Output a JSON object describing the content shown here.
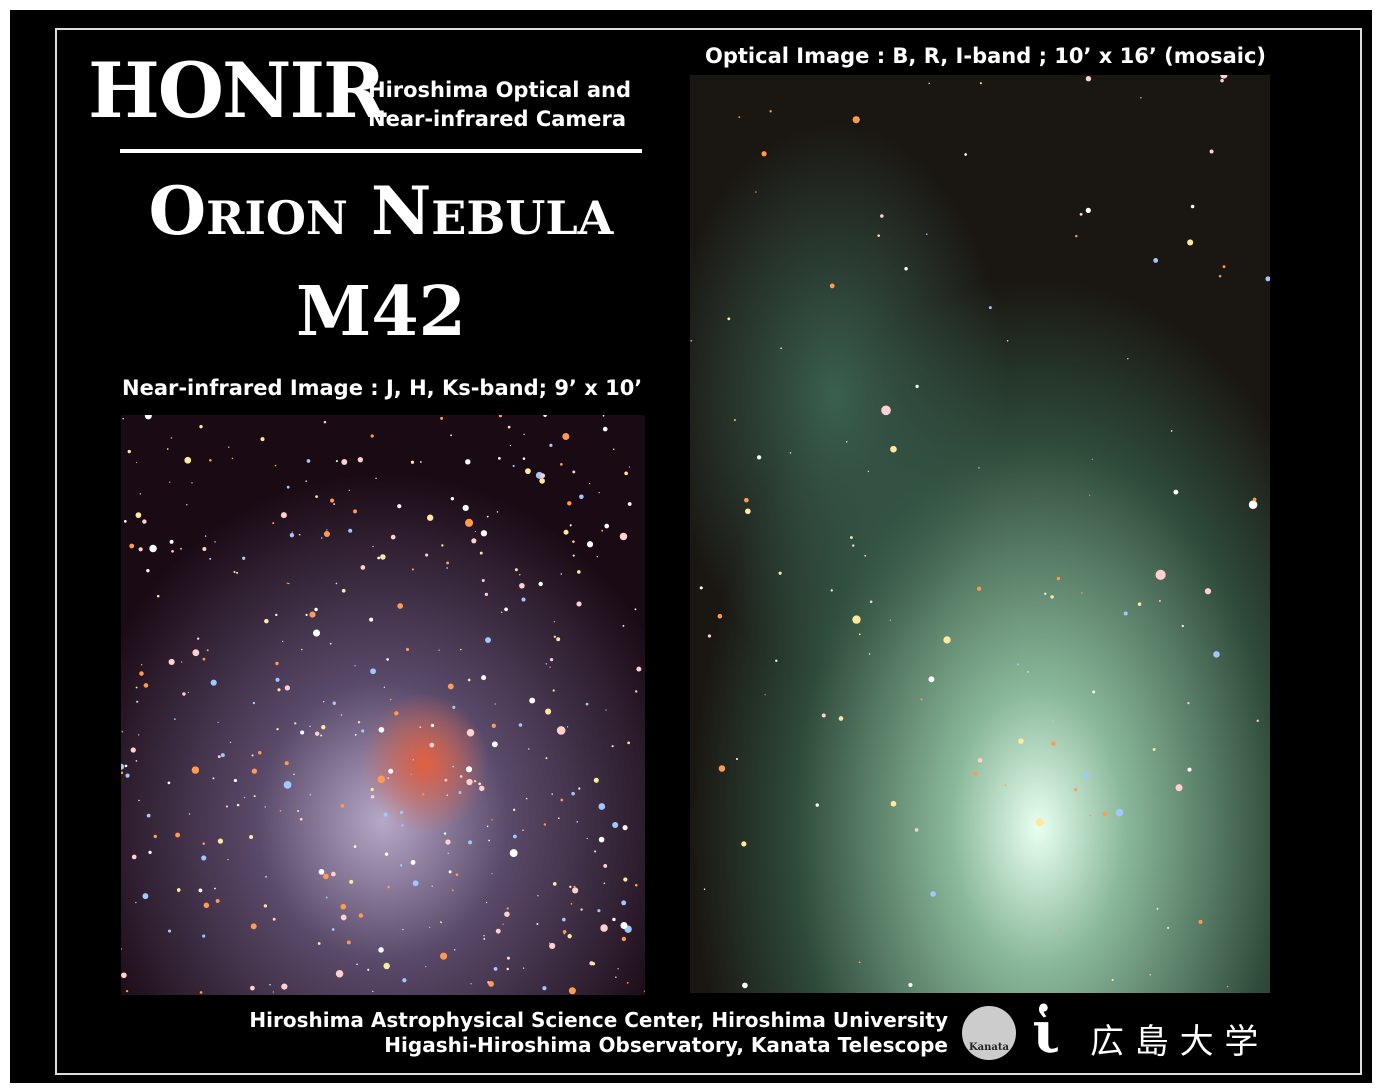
{
  "header": {
    "logo": "HONIR",
    "subtitle_lines": [
      "Hiroshima Optical and",
      "Near-infrared Camera"
    ]
  },
  "title": {
    "name": "Orion Nebula",
    "designation": "M42"
  },
  "images": {
    "near_infrared": {
      "caption": "Near-infrared Image : J, H, Ks-band; 9’ x 10’"
    },
    "optical": {
      "caption": "Optical Image : B, R, I-band ; 10’ x 16’ (mosaic)"
    }
  },
  "footer": {
    "lines": [
      "Hiroshima Astrophysical Science Center, Hiroshima University",
      "Higashi-Hiroshima Observatory, Kanata Telescope"
    ],
    "badge": "Kanata",
    "university": "広 島 大 学"
  }
}
